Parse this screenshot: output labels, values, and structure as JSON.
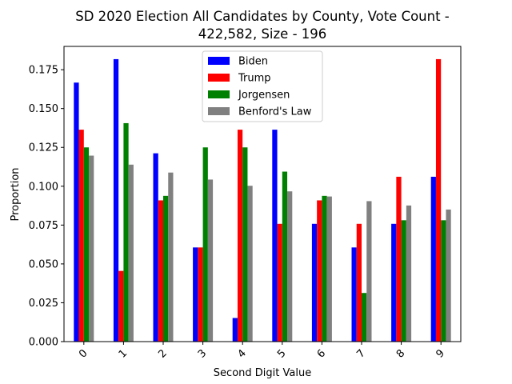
{
  "chart_data": {
    "type": "bar",
    "title_lines": [
      "SD 2020 Election All Candidates by County, Vote Count -",
      "422,582, Size - 196"
    ],
    "xlabel": "Second Digit Value",
    "ylabel": "Proportion",
    "categories": [
      "0",
      "1",
      "2",
      "3",
      "4",
      "5",
      "6",
      "7",
      "8",
      "9"
    ],
    "ylim": [
      0.0,
      0.19
    ],
    "yticks": [
      "0.000",
      "0.025",
      "0.050",
      "0.075",
      "0.100",
      "0.125",
      "0.150",
      "0.175"
    ],
    "legend_position": "top-center",
    "grid": false,
    "series": [
      {
        "name": "Biden",
        "color": "#0000ff",
        "values": [
          0.1667,
          0.1818,
          0.1212,
          0.0606,
          0.0152,
          0.1364,
          0.0758,
          0.0606,
          0.0758,
          0.1061
        ]
      },
      {
        "name": "Trump",
        "color": "#ff0000",
        "values": [
          0.1364,
          0.0455,
          0.0909,
          0.0606,
          0.1364,
          0.0758,
          0.0909,
          0.0758,
          0.1061,
          0.1818
        ]
      },
      {
        "name": "Jorgensen",
        "color": "#008000",
        "values": [
          0.125,
          0.1406,
          0.0938,
          0.125,
          0.125,
          0.1094,
          0.0938,
          0.0313,
          0.0781,
          0.0781
        ]
      },
      {
        "name": "Benford's Law",
        "color": "#808080",
        "values": [
          0.1197,
          0.1139,
          0.1088,
          0.1043,
          0.1003,
          0.0967,
          0.0934,
          0.0904,
          0.0876,
          0.085
        ]
      }
    ]
  }
}
